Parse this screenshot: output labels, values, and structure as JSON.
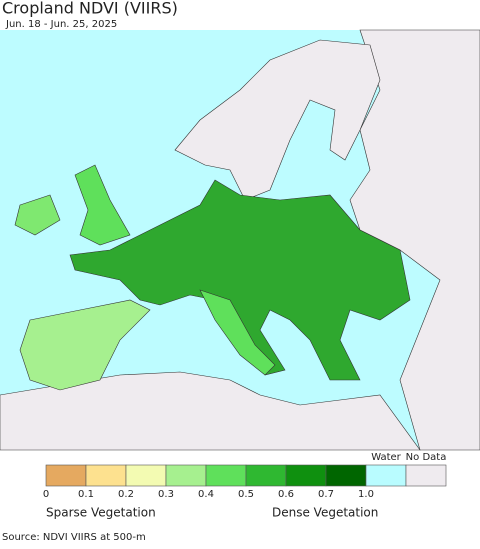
{
  "header": {
    "title": "Cropland NDVI (VIIRS)",
    "subtitle": "Jun. 18 - Jun. 25, 2025"
  },
  "legend": {
    "bins": [
      {
        "color": "#e5a960"
      },
      {
        "color": "#fde18f"
      },
      {
        "color": "#f3fbb2"
      },
      {
        "color": "#a6f08f"
      },
      {
        "color": "#5fe05b"
      },
      {
        "color": "#2fb831"
      },
      {
        "color": "#0f900f"
      },
      {
        "color": "#006600"
      },
      {
        "color": "#b9fcff",
        "label": "Water"
      },
      {
        "color": "#efebef",
        "label": "No Data"
      }
    ],
    "ticks": [
      "0",
      "0.1",
      "0.2",
      "0.3",
      "0.4",
      "0.5",
      "0.6",
      "0.7",
      "1.0"
    ],
    "low_label": "Sparse Vegetation",
    "high_label": "Dense Vegetation"
  },
  "footer": {
    "source": "Source: NDVI VIIRS at 500-m"
  }
}
